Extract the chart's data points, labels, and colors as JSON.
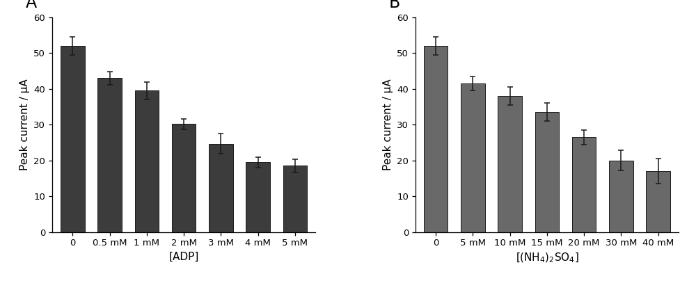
{
  "panel_A": {
    "label": "A",
    "categories": [
      "0",
      "0.5 mM",
      "1 mM",
      "2 mM",
      "3 mM",
      "4 mM",
      "5 mM"
    ],
    "values": [
      52.0,
      43.0,
      39.5,
      30.2,
      24.7,
      19.5,
      18.5
    ],
    "errors": [
      2.5,
      1.8,
      2.5,
      1.5,
      2.8,
      1.5,
      1.8
    ],
    "xlabel": "[ADP]",
    "ylabel": "Peak current / μA",
    "ylim": [
      0,
      60
    ],
    "yticks": [
      0,
      10,
      20,
      30,
      40,
      50,
      60
    ]
  },
  "panel_B": {
    "label": "B",
    "categories": [
      "0",
      "5 mM",
      "10 mM",
      "15 mM",
      "20 mM",
      "30 mM",
      "40 mM"
    ],
    "values": [
      52.0,
      41.5,
      38.0,
      33.5,
      26.5,
      20.0,
      17.0
    ],
    "errors": [
      2.5,
      2.0,
      2.5,
      2.5,
      2.0,
      2.8,
      3.5
    ],
    "xlabel": "[(NH$_4$)$_2$SO$_4$]",
    "ylabel": "Peak current / μA",
    "ylim": [
      0,
      60
    ],
    "yticks": [
      0,
      10,
      20,
      30,
      40,
      50,
      60
    ]
  },
  "bar_color_A": "#3c3c3c",
  "bar_color_B": "#696969",
  "bar_edge_color": "#1a1a1a",
  "error_color": "#1a1a1a",
  "bg_color": "#ffffff",
  "tick_fontsize": 9.5,
  "axis_label_fontsize": 11,
  "panel_label_fontsize": 17,
  "bar_width": 0.65,
  "capsize": 3
}
